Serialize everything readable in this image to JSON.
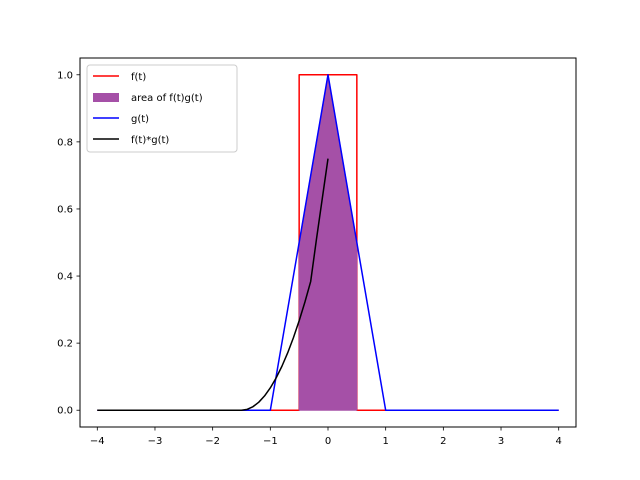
{
  "chart_data": {
    "type": "line",
    "title": "",
    "xlabel": "",
    "ylabel": "",
    "xlim": [
      -4.3,
      4.3
    ],
    "ylim": [
      -0.05,
      1.05
    ],
    "grid": false,
    "legend_placement": "upper-left",
    "xticks": [
      -4,
      -3,
      -2,
      -1,
      0,
      1,
      2,
      3,
      4
    ],
    "xtick_labels": [
      "−4",
      "−3",
      "−2",
      "−1",
      "0",
      "1",
      "2",
      "3",
      "4"
    ],
    "yticks": [
      0.0,
      0.2,
      0.4,
      0.6,
      0.8,
      1.0
    ],
    "ytick_labels": [
      "0.0",
      "0.2",
      "0.4",
      "0.6",
      "0.8",
      "1.0"
    ],
    "legend": [
      "f(t)",
      "area of f(t)g(t)",
      "g(t)",
      "f(t)*g(t)"
    ],
    "series": [
      {
        "name": "f(t)",
        "color": "#ff0000",
        "kind": "line",
        "x": [
          -4,
          -0.5,
          -0.5,
          0.5,
          0.5,
          4
        ],
        "y": [
          0,
          0,
          1,
          1,
          0,
          0
        ]
      },
      {
        "name": "area of f(t)g(t)",
        "color": "#a550a7",
        "kind": "fill",
        "x": [
          -0.5,
          0,
          0.5
        ],
        "y": [
          0.5,
          1,
          0.5
        ]
      },
      {
        "name": "g(t)",
        "color": "#0000ff",
        "kind": "line",
        "x": [
          -4,
          -1,
          0,
          1,
          4
        ],
        "y": [
          0,
          0,
          1,
          0,
          0
        ]
      },
      {
        "name": "f(t)*g(t)",
        "color": "#000000",
        "kind": "line",
        "x": [
          -4,
          -1.5,
          -1.4,
          -1.3,
          -1.2,
          -1.1,
          -1.0,
          -0.9,
          -0.8,
          -0.7,
          -0.6,
          -0.5,
          -0.4,
          -0.3,
          -0.2,
          -0.1,
          0.0
        ],
        "y": [
          0,
          0,
          0.00267,
          0.01067,
          0.024,
          0.04267,
          0.06667,
          0.096,
          0.13067,
          0.17067,
          0.216,
          0.26667,
          0.32267,
          0.384,
          0.51,
          0.63,
          0.75
        ]
      }
    ]
  }
}
